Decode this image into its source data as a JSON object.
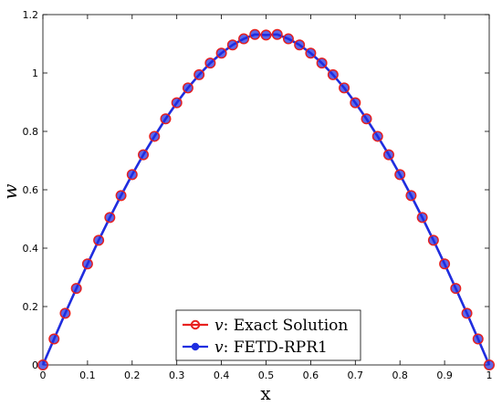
{
  "chart_data": {
    "type": "line",
    "xlabel": "x",
    "ylabel": "w",
    "xlim": [
      0,
      1
    ],
    "ylim": [
      0,
      1.2
    ],
    "xticks": [
      "0",
      "0.1",
      "0.2",
      "0.3",
      "0.4",
      "0.5",
      "0.6",
      "0.7",
      "0.8",
      "0.9",
      "1"
    ],
    "yticks": [
      "0",
      "0.2",
      "0.4",
      "0.6",
      "0.8",
      "1",
      "1.2"
    ],
    "grid": false,
    "legend_position": "bottom-center",
    "x": [
      0,
      0.025,
      0.05,
      0.075,
      0.1,
      0.125,
      0.15,
      0.175,
      0.2,
      0.225,
      0.25,
      0.275,
      0.3,
      0.325,
      0.35,
      0.375,
      0.4,
      0.425,
      0.45,
      0.475,
      0.5,
      0.525,
      0.55,
      0.575,
      0.6,
      0.625,
      0.65,
      0.675,
      0.7,
      0.725,
      0.75,
      0.775,
      0.8,
      0.825,
      0.85,
      0.875,
      0.9,
      0.925,
      0.95,
      0.975,
      1
    ],
    "series": [
      {
        "name": "v: Exact Solution",
        "symbol": "v",
        "label_rest": ": Exact Solution",
        "color": "#e8211f",
        "marker": "circle-open",
        "values": [
          0,
          0.089,
          0.177,
          0.262,
          0.346,
          0.427,
          0.505,
          0.58,
          0.652,
          0.72,
          0.783,
          0.843,
          0.898,
          0.949,
          0.994,
          1.034,
          1.068,
          1.096,
          1.117,
          1.132,
          1.13,
          1.132,
          1.117,
          1.096,
          1.068,
          1.034,
          0.994,
          0.949,
          0.898,
          0.843,
          0.783,
          0.72,
          0.652,
          0.58,
          0.505,
          0.427,
          0.346,
          0.262,
          0.177,
          0.089,
          0
        ]
      },
      {
        "name": "v: FETD-RPR1",
        "symbol": "v",
        "label_rest": ": FETD-RPR1",
        "color": "#1f2ee0",
        "marker": "circle-filled",
        "values": [
          0,
          0.089,
          0.177,
          0.262,
          0.346,
          0.427,
          0.505,
          0.58,
          0.652,
          0.72,
          0.783,
          0.843,
          0.898,
          0.949,
          0.994,
          1.034,
          1.068,
          1.096,
          1.117,
          1.132,
          1.13,
          1.132,
          1.117,
          1.096,
          1.068,
          1.034,
          0.994,
          0.949,
          0.898,
          0.843,
          0.783,
          0.72,
          0.652,
          0.58,
          0.505,
          0.427,
          0.346,
          0.262,
          0.177,
          0.089,
          0
        ]
      }
    ]
  }
}
